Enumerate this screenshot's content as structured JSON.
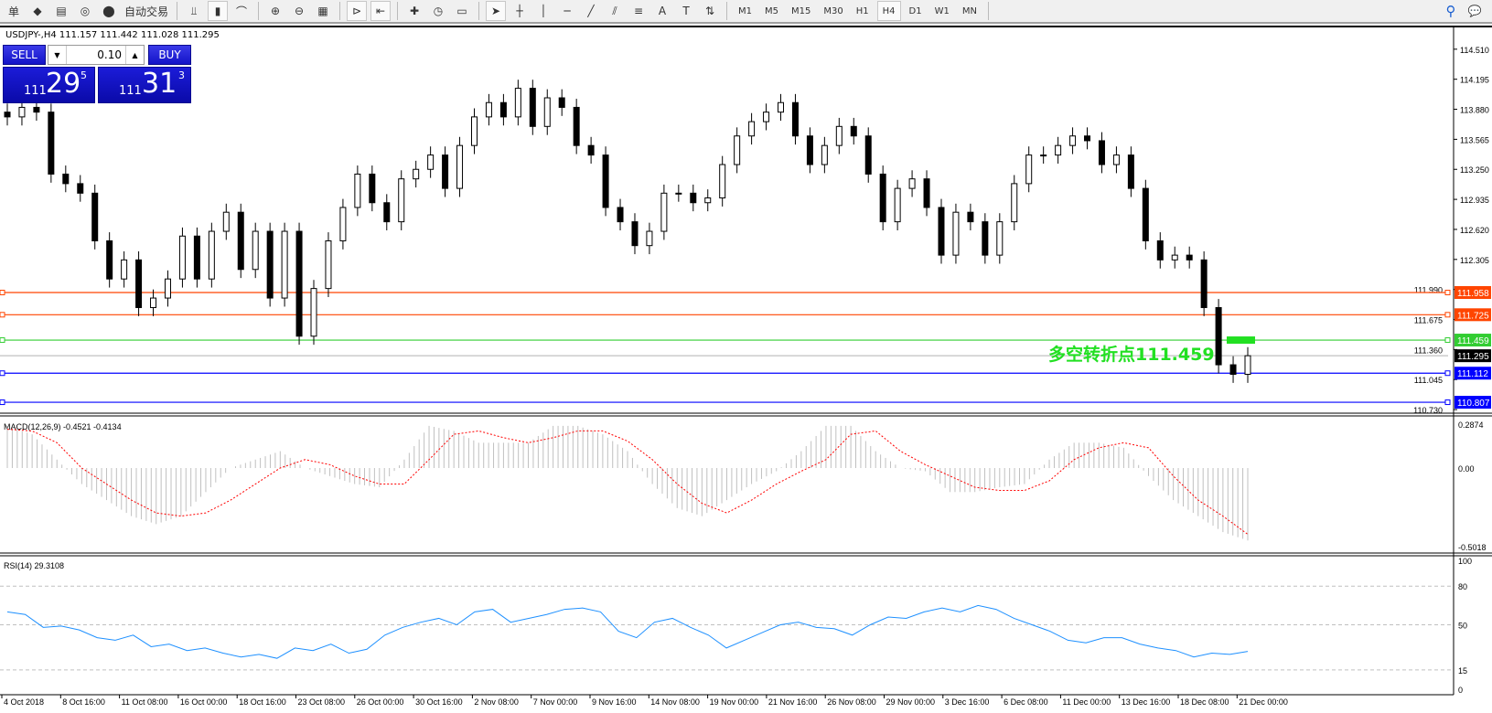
{
  "toolbar": {
    "items": [
      {
        "name": "new-order-icon",
        "glyph": "单"
      },
      {
        "name": "market-watch-icon",
        "glyph": "◆"
      },
      {
        "name": "navigator-icon",
        "glyph": "▤"
      },
      {
        "name": "signal-icon",
        "glyph": "◎"
      },
      {
        "name": "auto-trading-icon",
        "glyph": "⬤"
      }
    ],
    "auto_trading_label": "自动交易",
    "chart_tools": [
      {
        "name": "bar-chart-icon",
        "glyph": "⫫"
      },
      {
        "name": "candlestick-icon",
        "glyph": "▮"
      },
      {
        "name": "line-chart-icon",
        "glyph": "⌒"
      },
      {
        "name": "zoom-in-icon",
        "glyph": "⊕"
      },
      {
        "name": "zoom-out-icon",
        "glyph": "⊖"
      },
      {
        "name": "tile-windows-icon",
        "glyph": "▦"
      },
      {
        "name": "auto-scroll-icon",
        "glyph": "⊳"
      },
      {
        "name": "chart-shift-icon",
        "glyph": "⇤"
      },
      {
        "name": "indicators-icon",
        "glyph": "✚"
      },
      {
        "name": "periods-icon",
        "glyph": "◷"
      },
      {
        "name": "templates-icon",
        "glyph": "▭"
      }
    ],
    "draw_tools": [
      {
        "name": "cursor-icon",
        "glyph": "➤"
      },
      {
        "name": "crosshair-icon",
        "glyph": "┼"
      },
      {
        "name": "vertical-line-icon",
        "glyph": "│"
      },
      {
        "name": "horizontal-line-icon",
        "glyph": "─"
      },
      {
        "name": "trendline-icon",
        "glyph": "╱"
      },
      {
        "name": "equidistant-channel-icon",
        "glyph": "⫽"
      },
      {
        "name": "fibonacci-icon",
        "glyph": "≡"
      },
      {
        "name": "text-icon",
        "glyph": "A"
      },
      {
        "name": "text-label-icon",
        "glyph": "T"
      },
      {
        "name": "arrows-icon",
        "glyph": "⇅"
      }
    ],
    "timeframes": [
      "M1",
      "M5",
      "M15",
      "M30",
      "H1",
      "H4",
      "D1",
      "W1",
      "MN"
    ],
    "active_timeframe": "H4",
    "search_glyph": "⚲",
    "chat_glyph": "💬"
  },
  "chart": {
    "title": "USDJPY-,H4  111.157 111.442 111.028 111.295",
    "one_click": {
      "sell": "SELL",
      "buy": "BUY",
      "lot": "0.10",
      "sell_prefix": "111",
      "sell_big": "29",
      "sell_sup": "5",
      "buy_prefix": "111",
      "buy_big": "31",
      "buy_sup": "3"
    },
    "annotation": "多空转折点111.459",
    "colors": {
      "bull": "#ffffff",
      "bear": "#000000",
      "resistance": "#ff4500",
      "pivot": "#32cd32",
      "support": "#0000ff",
      "bid": "#c0c0c0",
      "macd_hist": "#c0c0c0",
      "macd_signal": "#ff0000",
      "rsi": "#1e90ff"
    }
  },
  "chart_data": {
    "type": "candlestick",
    "symbol": "USDJPY-",
    "timeframe": "H4",
    "last_ohlc": {
      "open": 111.157,
      "high": 111.442,
      "low": 111.028,
      "close": 111.295
    },
    "closes": [
      113.8,
      113.9,
      113.85,
      113.2,
      113.1,
      113.0,
      112.5,
      112.1,
      112.3,
      111.8,
      111.9,
      112.1,
      112.55,
      112.1,
      112.6,
      112.8,
      112.2,
      112.6,
      111.9,
      112.6,
      111.5,
      112.0,
      112.5,
      112.85,
      113.2,
      112.9,
      112.7,
      113.15,
      113.25,
      113.4,
      113.05,
      113.5,
      113.8,
      113.95,
      113.8,
      114.1,
      113.7,
      114.0,
      113.9,
      113.5,
      113.4,
      112.85,
      112.7,
      112.45,
      112.6,
      113.0,
      113.0,
      112.9,
      112.95,
      113.3,
      113.6,
      113.75,
      113.85,
      113.95,
      113.6,
      113.3,
      113.5,
      113.7,
      113.6,
      113.2,
      112.7,
      113.05,
      113.15,
      112.85,
      112.35,
      112.8,
      112.7,
      112.35,
      112.7,
      113.1,
      113.4,
      113.4,
      113.5,
      113.6,
      113.55,
      113.3,
      113.4,
      113.05,
      112.5,
      112.3,
      112.35,
      112.3,
      111.8,
      111.2,
      111.1,
      111.295
    ],
    "ylim": [
      110.73,
      114.6
    ],
    "price_ticks": [
      "114.510",
      "114.195",
      "113.880",
      "113.565",
      "113.250",
      "112.935",
      "112.620",
      "112.305",
      "111.990",
      "111.675",
      "111.360",
      "111.045",
      "110.730"
    ],
    "levels": [
      {
        "price": 111.958,
        "label": "111.958",
        "kind": "resistance"
      },
      {
        "price": 111.725,
        "label": "111.725",
        "kind": "resistance"
      },
      {
        "price": 111.459,
        "label": "111.459",
        "kind": "pivot"
      },
      {
        "price": 111.295,
        "label": "111.295",
        "kind": "bid"
      },
      {
        "price": 111.112,
        "label": "111.112",
        "kind": "support"
      },
      {
        "price": 110.807,
        "label": "110.807",
        "kind": "support"
      }
    ],
    "time_labels": [
      "4 Oct 2018",
      "8 Oct 16:00",
      "11 Oct 08:00",
      "16 Oct 00:00",
      "18 Oct 16:00",
      "23 Oct 08:00",
      "26 Oct 00:00",
      "30 Oct 16:00",
      "2 Nov 08:00",
      "7 Nov 00:00",
      "9 Nov 16:00",
      "14 Nov 08:00",
      "19 Nov 00:00",
      "21 Nov 16:00",
      "26 Nov 08:00",
      "29 Nov 00:00",
      "3 Dec 16:00",
      "6 Dec 08:00",
      "11 Dec 00:00",
      "13 Dec 16:00",
      "18 Dec 08:00",
      "21 Dec 00:00"
    ],
    "macd": {
      "label": "MACD(12,26,9) -0.4521 -0.4134",
      "ticks": [
        "0.2874",
        "0.00",
        "-0.5018"
      ],
      "ylim": [
        -0.5018,
        0.2874
      ],
      "histogram": [
        0.25,
        0.2,
        0.05,
        -0.1,
        -0.2,
        -0.3,
        -0.35,
        -0.3,
        -0.15,
        0.0,
        0.05,
        0.1,
        0.0,
        -0.05,
        -0.1,
        -0.12,
        0.05,
        0.25,
        0.22,
        0.15,
        0.15,
        0.15,
        0.25,
        0.25,
        0.2,
        0.1,
        -0.1,
        -0.25,
        -0.3,
        -0.2,
        -0.1,
        -0.02,
        0.1,
        0.25,
        0.25,
        0.1,
        0.0,
        -0.02,
        -0.15,
        -0.15,
        -0.12,
        -0.1,
        0.05,
        0.15,
        0.15,
        0.12,
        -0.05,
        -0.2,
        -0.3,
        -0.4,
        -0.4521
      ],
      "signal": [
        0.23,
        0.22,
        0.15,
        0.0,
        -0.1,
        -0.2,
        -0.28,
        -0.3,
        -0.28,
        -0.2,
        -0.1,
        0.0,
        0.05,
        0.02,
        -0.05,
        -0.1,
        -0.1,
        0.05,
        0.2,
        0.22,
        0.18,
        0.15,
        0.18,
        0.22,
        0.22,
        0.16,
        0.05,
        -0.1,
        -0.22,
        -0.28,
        -0.2,
        -0.1,
        -0.02,
        0.05,
        0.2,
        0.22,
        0.1,
        0.02,
        -0.05,
        -0.12,
        -0.14,
        -0.14,
        -0.08,
        0.05,
        0.12,
        0.15,
        0.12,
        -0.05,
        -0.2,
        -0.3,
        -0.4134
      ]
    },
    "rsi": {
      "label": "RSI(14) 29.3108",
      "ticks": [
        "100",
        "80",
        "50",
        "15",
        "0"
      ],
      "levels": [
        80,
        50,
        15
      ],
      "ylim": [
        0,
        100
      ],
      "values": [
        60,
        58,
        48,
        49,
        46,
        40,
        38,
        42,
        33,
        35,
        30,
        32,
        28,
        25,
        27,
        24,
        32,
        30,
        35,
        28,
        31,
        42,
        48,
        52,
        55,
        50,
        60,
        62,
        52,
        55,
        58,
        62,
        63,
        60,
        45,
        40,
        52,
        55,
        48,
        42,
        32,
        38,
        44,
        50,
        52,
        48,
        47,
        42,
        50,
        56,
        55,
        60,
        63,
        60,
        65,
        62,
        55,
        50,
        45,
        38,
        36,
        40,
        40,
        35,
        32,
        30,
        25,
        28,
        27,
        29.3108
      ]
    }
  }
}
